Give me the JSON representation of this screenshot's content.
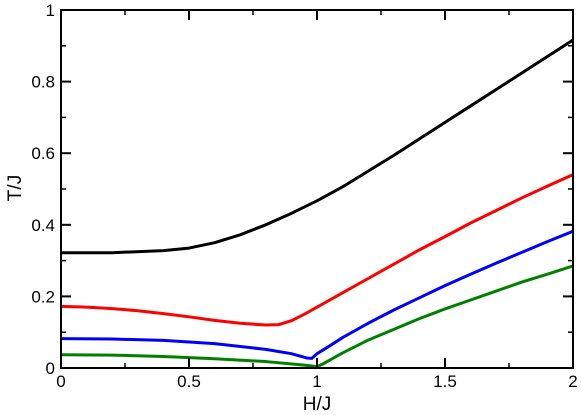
{
  "chart_data": {
    "type": "line",
    "title": "",
    "xlabel": "H/J",
    "ylabel": "T/J",
    "xlim": [
      0,
      2
    ],
    "ylim": [
      0,
      1
    ],
    "grid": false,
    "legend": "none",
    "x_ticks": [
      0,
      0.5,
      1,
      1.5,
      2
    ],
    "x_tick_labels": [
      "0",
      "0.5",
      "1",
      "1.5",
      "2"
    ],
    "y_ticks": [
      0,
      0.2,
      0.4,
      0.6,
      0.8,
      1
    ],
    "y_tick_labels": [
      "0",
      "0.2",
      "0.4",
      "0.6",
      "0.8",
      "1"
    ],
    "series": [
      {
        "color": "#000000",
        "points": [
          [
            0,
            0.322
          ],
          [
            0.2,
            0.322
          ],
          [
            0.4,
            0.328
          ],
          [
            0.5,
            0.335
          ],
          [
            0.6,
            0.35
          ],
          [
            0.7,
            0.372
          ],
          [
            0.8,
            0.4
          ],
          [
            0.9,
            0.432
          ],
          [
            1.0,
            0.467
          ],
          [
            1.1,
            0.506
          ],
          [
            1.2,
            0.55
          ],
          [
            1.3,
            0.594
          ],
          [
            1.4,
            0.64
          ],
          [
            1.5,
            0.686
          ],
          [
            1.6,
            0.732
          ],
          [
            1.7,
            0.778
          ],
          [
            1.8,
            0.824
          ],
          [
            1.9,
            0.87
          ],
          [
            2.0,
            0.916
          ]
        ]
      },
      {
        "color": "#ff0000",
        "points": [
          [
            0,
            0.172
          ],
          [
            0.1,
            0.17
          ],
          [
            0.2,
            0.166
          ],
          [
            0.3,
            0.16
          ],
          [
            0.4,
            0.152
          ],
          [
            0.5,
            0.143
          ],
          [
            0.6,
            0.133
          ],
          [
            0.7,
            0.125
          ],
          [
            0.8,
            0.12
          ],
          [
            0.85,
            0.121
          ],
          [
            0.9,
            0.132
          ],
          [
            0.95,
            0.15
          ],
          [
            1.0,
            0.17
          ],
          [
            1.1,
            0.21
          ],
          [
            1.2,
            0.25
          ],
          [
            1.3,
            0.29
          ],
          [
            1.4,
            0.33
          ],
          [
            1.5,
            0.367
          ],
          [
            1.6,
            0.405
          ],
          [
            1.7,
            0.44
          ],
          [
            1.8,
            0.475
          ],
          [
            1.9,
            0.508
          ],
          [
            2.0,
            0.54
          ]
        ]
      },
      {
        "color": "#0000ff",
        "points": [
          [
            0,
            0.082
          ],
          [
            0.2,
            0.081
          ],
          [
            0.4,
            0.077
          ],
          [
            0.6,
            0.068
          ],
          [
            0.8,
            0.052
          ],
          [
            0.9,
            0.04
          ],
          [
            0.96,
            0.028
          ],
          [
            0.98,
            0.027
          ],
          [
            1.0,
            0.04
          ],
          [
            1.05,
            0.062
          ],
          [
            1.1,
            0.085
          ],
          [
            1.2,
            0.125
          ],
          [
            1.3,
            0.162
          ],
          [
            1.4,
            0.196
          ],
          [
            1.5,
            0.23
          ],
          [
            1.6,
            0.262
          ],
          [
            1.7,
            0.293
          ],
          [
            1.8,
            0.323
          ],
          [
            1.9,
            0.353
          ],
          [
            2.0,
            0.382
          ]
        ]
      },
      {
        "color": "#008000",
        "points": [
          [
            0,
            0.037
          ],
          [
            0.2,
            0.036
          ],
          [
            0.4,
            0.032
          ],
          [
            0.6,
            0.026
          ],
          [
            0.8,
            0.018
          ],
          [
            0.95,
            0.008
          ],
          [
            1.0,
            0.004
          ],
          [
            1.02,
            0.01
          ],
          [
            1.05,
            0.022
          ],
          [
            1.1,
            0.042
          ],
          [
            1.2,
            0.078
          ],
          [
            1.3,
            0.108
          ],
          [
            1.4,
            0.138
          ],
          [
            1.5,
            0.165
          ],
          [
            1.6,
            0.19
          ],
          [
            1.7,
            0.215
          ],
          [
            1.8,
            0.24
          ],
          [
            1.9,
            0.262
          ],
          [
            2.0,
            0.285
          ]
        ]
      }
    ]
  }
}
